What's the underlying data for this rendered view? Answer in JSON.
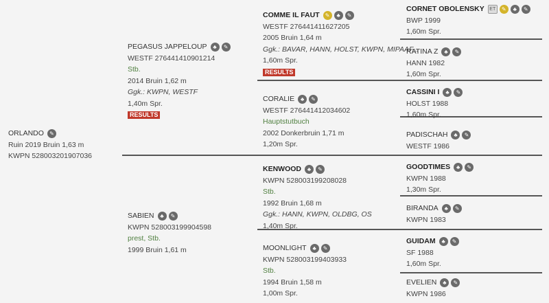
{
  "colors": {
    "background": "#f4f4f4",
    "results": "#c0392b",
    "registry_status": "#4f7f3f",
    "icon": "#6a6a6a",
    "icon_highlight": "#d4b42a"
  },
  "results_label": "RESULTS",
  "horses": [
    {
      "id": "orlando",
      "name": "ORLANDO",
      "bold": false,
      "icons": [
        "edit-icon"
      ],
      "lines": [
        {
          "text": "Ruin 2019 Bruin 1,63 m"
        },
        {
          "text": "KWPN 528003201907036"
        }
      ]
    },
    {
      "id": "pegasus-jappeloup",
      "name": "PEGASUS JAPPELOUP",
      "bold": false,
      "icons": [
        "pedigree-icon",
        "edit-icon"
      ],
      "lines": [
        {
          "text": "WESTF 276441410901214"
        },
        {
          "text": "Stb.",
          "style": "green"
        },
        {
          "text": "2014 Bruin 1,62 m"
        },
        {
          "text": "Ggk.: KWPN, WESTF",
          "style": "italic"
        },
        {
          "text": "1,40m Spr."
        }
      ],
      "results": true
    },
    {
      "id": "sabien",
      "name": "SABIEN",
      "bold": false,
      "icons": [
        "pedigree-icon",
        "edit-icon"
      ],
      "lines": [
        {
          "text": "KWPN 528003199904598"
        },
        {
          "text": "prest, Stb.",
          "style": "green"
        },
        {
          "text": "1999 Bruin 1,61 m"
        }
      ]
    },
    {
      "id": "comme-il-faut",
      "name": "COMME IL FAUT",
      "bold": true,
      "icons": [
        "gold-edit-icon",
        "pedigree-icon",
        "edit-icon"
      ],
      "lines": [
        {
          "text": "WESTF 276441411627205"
        },
        {
          "text": "2005 Bruin 1,64 m"
        },
        {
          "text": "Ggk.: BAVAR, HANN, HOLST, KWPN, MIPAAF...",
          "style": "italic"
        },
        {
          "text": "1,60m Spr."
        }
      ],
      "results": true
    },
    {
      "id": "coralie",
      "name": "CORALIE",
      "bold": false,
      "icons": [
        "pedigree-icon",
        "edit-icon"
      ],
      "lines": [
        {
          "text": "WESTF 276441412034602"
        },
        {
          "text": "Hauptstutbuch",
          "style": "green"
        },
        {
          "text": "2002 Donkerbruin 1,71 m"
        },
        {
          "text": "1,20m Spr."
        }
      ]
    },
    {
      "id": "kenwood",
      "name": "KENWOOD",
      "bold": true,
      "icons": [
        "pedigree-icon",
        "edit-icon"
      ],
      "lines": [
        {
          "text": "KWPN 528003199208028"
        },
        {
          "text": "Stb.",
          "style": "green"
        },
        {
          "text": "1992 Bruin 1,68 m"
        },
        {
          "text": "Ggk.: HANN, KWPN, OLDBG, OS",
          "style": "italic"
        },
        {
          "text": "1,40m Spr."
        }
      ]
    },
    {
      "id": "moonlight",
      "name": "MOONLIGHT",
      "bold": false,
      "icons": [
        "pedigree-icon",
        "edit-icon"
      ],
      "lines": [
        {
          "text": "KWPN 528003199403933"
        },
        {
          "text": "Stb.",
          "style": "green"
        },
        {
          "text": "1994 Bruin 1,58 m"
        },
        {
          "text": "1,00m Spr."
        }
      ]
    },
    {
      "id": "cornet-obolensky",
      "name": "CORNET OBOLENSKY",
      "bold": true,
      "icons": [
        "et-icon",
        "gold-edit-icon",
        "pedigree-icon",
        "edit-icon"
      ],
      "et_label": "ET",
      "lines": [
        {
          "text": "BWP 1999"
        },
        {
          "text": "1,60m Spr."
        }
      ]
    },
    {
      "id": "ratina-z",
      "name": "RATINA Z",
      "bold": false,
      "icons": [
        "pedigree-icon",
        "edit-icon"
      ],
      "lines": [
        {
          "text": "HANN 1982"
        },
        {
          "text": "1,60m Spr."
        }
      ]
    },
    {
      "id": "cassini-i",
      "name": "CASSINI I",
      "bold": true,
      "icons": [
        "pedigree-icon",
        "edit-icon"
      ],
      "lines": [
        {
          "text": "HOLST 1988"
        },
        {
          "text": "1,60m Spr."
        }
      ]
    },
    {
      "id": "padischah",
      "name": "PADISCHAH",
      "bold": false,
      "icons": [
        "pedigree-icon",
        "edit-icon"
      ],
      "lines": [
        {
          "text": "WESTF 1986"
        }
      ]
    },
    {
      "id": "goodtimes",
      "name": "GOODTIMES",
      "bold": true,
      "icons": [
        "pedigree-icon",
        "edit-icon"
      ],
      "lines": [
        {
          "text": "KWPN 1988"
        },
        {
          "text": "1,30m Spr."
        }
      ]
    },
    {
      "id": "biranda",
      "name": "BIRANDA",
      "bold": false,
      "icons": [
        "pedigree-icon",
        "edit-icon"
      ],
      "lines": [
        {
          "text": "KWPN 1983"
        }
      ]
    },
    {
      "id": "guidam",
      "name": "GUIDAM",
      "bold": true,
      "icons": [
        "pedigree-icon",
        "edit-icon"
      ],
      "lines": [
        {
          "text": "SF 1988"
        },
        {
          "text": "1,60m Spr."
        }
      ]
    },
    {
      "id": "evelien",
      "name": "EVELIEN",
      "bold": false,
      "icons": [
        "pedigree-icon",
        "edit-icon"
      ],
      "lines": [
        {
          "text": "KWPN 1986"
        }
      ]
    }
  ]
}
